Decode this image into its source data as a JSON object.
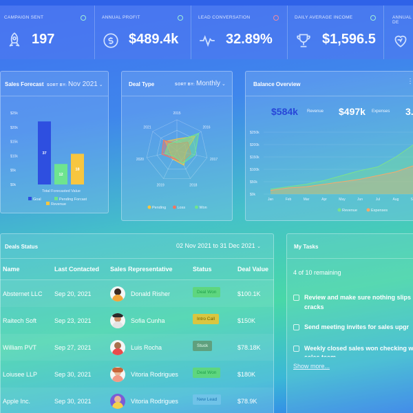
{
  "stats": [
    {
      "label": "Campaign Sent",
      "value": "197",
      "icon": "rocket-icon",
      "dot": "#9ef0d9"
    },
    {
      "label": "Annual Profit",
      "value": "$489.4k",
      "icon": "dollar-exchange-icon",
      "dot": "#9ef0d9"
    },
    {
      "label": "Lead Conversation",
      "value": "32.89%",
      "icon": "pulse-icon",
      "dot": "#f08aa0"
    },
    {
      "label": "Daily Average Income",
      "value": "$1,596.5",
      "icon": "trophy-icon",
      "dot": "#9ef0d9"
    },
    {
      "label": "Annual De",
      "value": "",
      "icon": "heart-icon",
      "dot": ""
    }
  ],
  "sales_forecast": {
    "title": "Sales Forecast",
    "sort_label": "SORT BY:",
    "sort_value": "Nov 2021",
    "chart_data": {
      "type": "bar",
      "categories": [
        "Goal",
        "Pending Forcast",
        "Revenue"
      ],
      "values": [
        37,
        12,
        18
      ],
      "bar_labels": [
        "37",
        "12",
        "18"
      ],
      "y_ticks": [
        "$0k",
        "$5k",
        "$10k",
        "$15k",
        "$20k",
        "$25k"
      ],
      "xlabel": "Total Forecasted Value",
      "colors": [
        "#2e4fe0",
        "#6ee48f",
        "#f7c640"
      ]
    }
  },
  "deal_type": {
    "title": "Deal Type",
    "sort_label": "SORT BY:",
    "sort_value": "Monthly",
    "chart_data": {
      "type": "radar",
      "axis_labels": [
        "2015",
        "2016",
        "2017",
        "2018",
        "2019",
        "2020",
        "2021"
      ],
      "series": [
        {
          "name": "Pending",
          "color": "#f7c640",
          "values": [
            38,
            75,
            28,
            52,
            30,
            22,
            48
          ]
        },
        {
          "name": "Loss",
          "color": "#f27560",
          "values": [
            22,
            45,
            46,
            40,
            28,
            50,
            55
          ]
        },
        {
          "name": "Won",
          "color": "#6ee48f",
          "values": [
            30,
            90,
            60,
            45,
            20,
            40,
            35
          ]
        }
      ]
    }
  },
  "balance": {
    "title": "Balance Overview",
    "revenue_value": "$584k",
    "revenue_label": "Revenue",
    "expenses_value": "$497k",
    "expenses_label": "Expenses",
    "cut_value": "3.",
    "chart_data": {
      "type": "area",
      "x": [
        "Jan",
        "Feb",
        "Mar",
        "Apr",
        "May",
        "Jun",
        "Jul",
        "Aug",
        "Sep"
      ],
      "y_ticks": [
        "$0k",
        "$50k",
        "$100k",
        "$150k",
        "$200k",
        "$250k"
      ],
      "series": [
        {
          "name": "Revenue",
          "color": "#7ce28b",
          "values": [
            20,
            30,
            40,
            55,
            75,
            95,
            110,
            150,
            200
          ]
        },
        {
          "name": "Expenses",
          "color": "#f7a86a",
          "values": [
            15,
            25,
            30,
            40,
            50,
            60,
            75,
            90,
            115
          ]
        }
      ]
    }
  },
  "deals": {
    "title": "Deals Status",
    "date_range": "02 Nov 2021 to 31 Dec 2021",
    "headers": [
      "Name",
      "Last Contacted",
      "Sales Representative",
      "Status",
      "Deal Value"
    ],
    "rows": [
      {
        "name": "Absternet LLC",
        "date": "Sep 20, 2021",
        "rep": "Donald Risher",
        "status": "Deal Won",
        "value": "$100.1K",
        "sbg": "#5ed67f",
        "sfg": "#1d9f4a"
      },
      {
        "name": "Raitech Soft",
        "date": "Sep 23, 2021",
        "rep": "Sofia Cunha",
        "status": "Intro Call",
        "value": "$150K",
        "sbg": "#d9c640",
        "sfg": "#6a5b00"
      },
      {
        "name": "William PVT",
        "date": "Sep 27, 2021",
        "rep": "Luis Rocha",
        "status": "Stuck",
        "value": "$78.18K",
        "sbg": "#5fa07e",
        "sfg": "#e8fff0"
      },
      {
        "name": "Loiusee LLP",
        "date": "Sep 30, 2021",
        "rep": "Vitoria Rodrigues",
        "status": "Deal Won",
        "value": "$180K",
        "sbg": "#5ed67f",
        "sfg": "#1d9f4a"
      },
      {
        "name": "Apple Inc.",
        "date": "Sep 30, 2021",
        "rep": "Vitoria Rodrigues",
        "status": "New Lead",
        "value": "$78.9K",
        "sbg": "#6fc3e8",
        "sfg": "#1a73b0"
      }
    ]
  },
  "tasks": {
    "title": "My Tasks",
    "remaining": "4 of 10 remaining",
    "items": [
      "Review and make sure nothing slips",
      "cracks",
      "Send meeting invites for sales upgr",
      "Weekly closed sales won checking w",
      "sales team"
    ],
    "show_more": "Show more..."
  }
}
